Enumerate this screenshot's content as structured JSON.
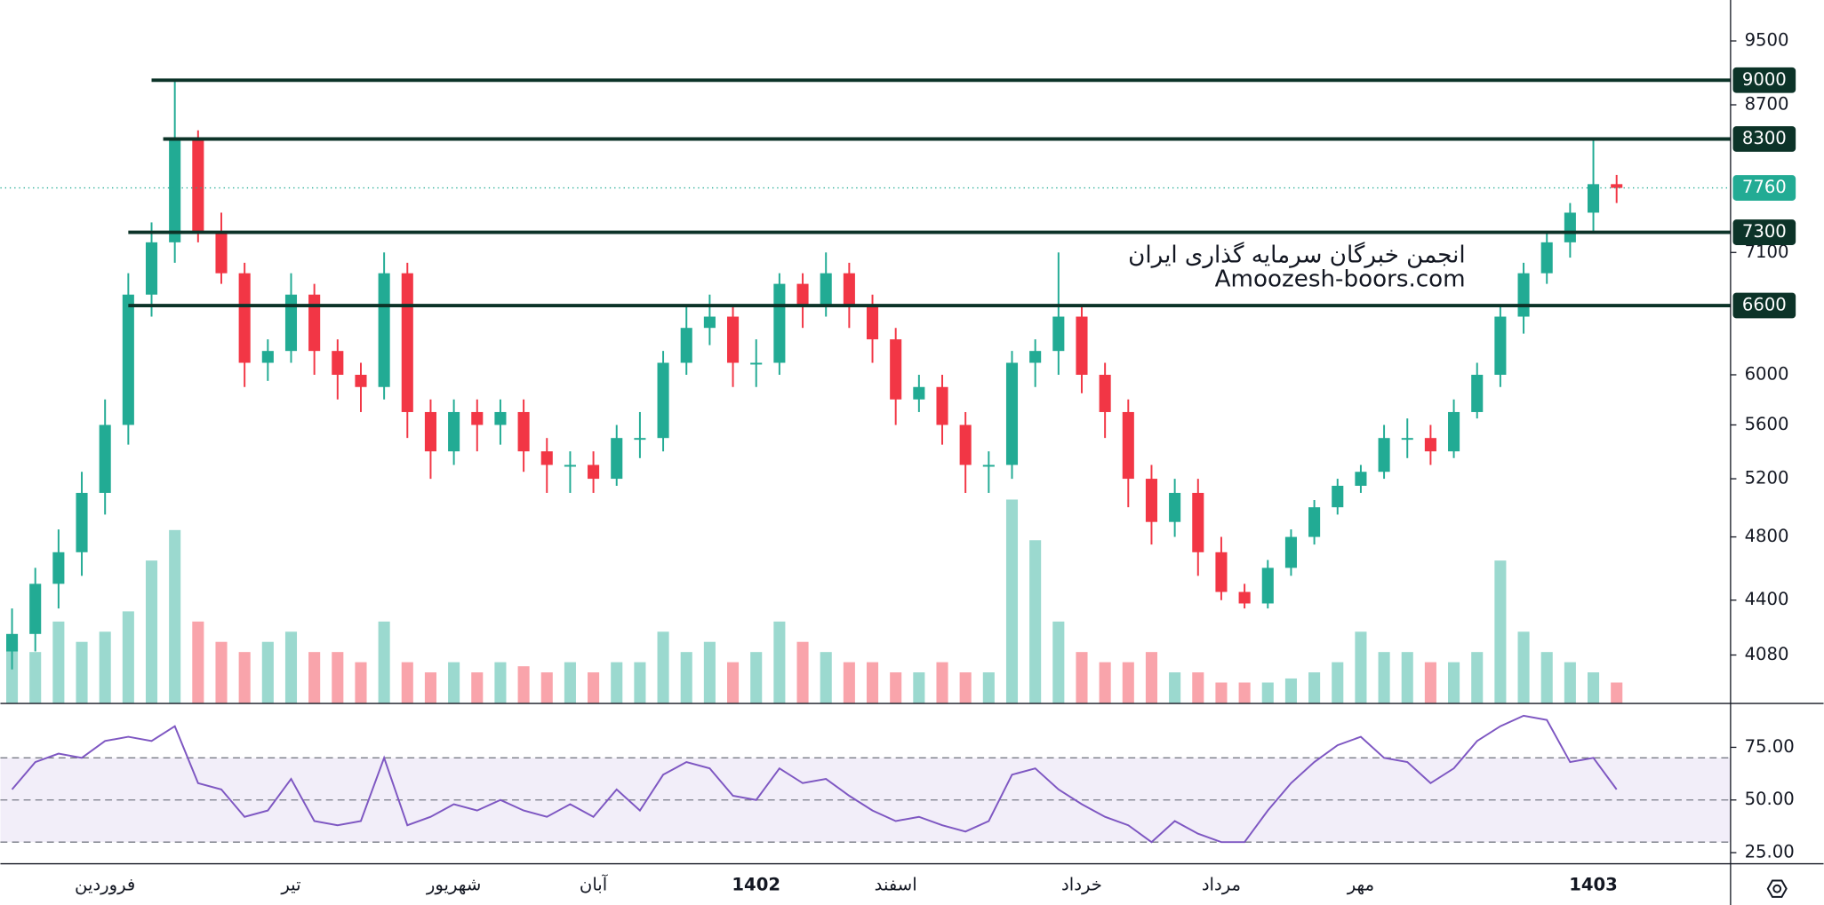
{
  "chart_data": {
    "type": "candlestick",
    "watermark": [
      "انجمن خبرگان سرمایه گذاری ایران",
      "Amoozesh-boors.com"
    ],
    "categories": [
      null,
      null,
      null,
      null,
      "فروردین",
      null,
      null,
      null,
      null,
      null,
      null,
      null,
      "تیر",
      null,
      null,
      null,
      null,
      null,
      null,
      "شهریور",
      null,
      null,
      null,
      null,
      null,
      "آبان",
      null,
      null,
      null,
      null,
      null,
      null,
      "1402",
      null,
      null,
      null,
      null,
      null,
      "اسفند",
      null,
      null,
      null,
      null,
      null,
      null,
      null,
      "خرداد",
      null,
      null,
      null,
      null,
      null,
      "مرداد",
      null,
      null,
      null,
      null,
      null,
      "مهر",
      null,
      null,
      null,
      null,
      null,
      null,
      null,
      null,
      null,
      "1403",
      null
    ],
    "open": [
      4100,
      4200,
      4500,
      4700,
      5100,
      5600,
      6700,
      7200,
      8300,
      7300,
      6900,
      6100,
      6200,
      6700,
      6200,
      6000,
      5900,
      6900,
      5700,
      5400,
      5700,
      5600,
      5700,
      5400,
      5300,
      5300,
      5200,
      5500,
      5500,
      6100,
      6400,
      6500,
      6100,
      6100,
      6800,
      6600,
      6900,
      6600,
      6300,
      5800,
      5900,
      5600,
      5300,
      5300,
      6100,
      6200,
      6500,
      6000,
      5700,
      5200,
      4900,
      5100,
      4700,
      4450,
      4380,
      4600,
      4800,
      5000,
      5150,
      5250,
      5500,
      5500,
      5400,
      5700,
      6000,
      6500,
      6900,
      7200,
      7500,
      7800
    ],
    "high": [
      4350,
      4600,
      4850,
      5250,
      5800,
      6900,
      7400,
      9000,
      8400,
      7500,
      7000,
      6300,
      6900,
      6800,
      6300,
      6100,
      7100,
      7000,
      5800,
      5800,
      5800,
      5800,
      5800,
      5500,
      5400,
      5400,
      5600,
      5700,
      6200,
      6600,
      6700,
      6600,
      6300,
      6900,
      6900,
      7100,
      7000,
      6700,
      6400,
      6000,
      6000,
      5700,
      5400,
      6200,
      6300,
      7100,
      6600,
      6100,
      5800,
      5300,
      5200,
      5200,
      4800,
      4500,
      4650,
      4850,
      5050,
      5200,
      5300,
      5600,
      5650,
      5600,
      5800,
      6100,
      6600,
      7000,
      7300,
      7600,
      8300,
      7900
    ],
    "low": [
      4000,
      4100,
      4350,
      4550,
      4950,
      5450,
      6500,
      7000,
      7200,
      6800,
      5900,
      5950,
      6100,
      6000,
      5800,
      5700,
      5800,
      5500,
      5200,
      5300,
      5400,
      5450,
      5250,
      5100,
      5100,
      5100,
      5150,
      5350,
      5400,
      6000,
      6250,
      5900,
      5900,
      6000,
      6400,
      6500,
      6400,
      6100,
      5600,
      5700,
      5450,
      5100,
      5100,
      5200,
      5900,
      6000,
      5850,
      5500,
      5000,
      4750,
      4800,
      4550,
      4400,
      4350,
      4350,
      4550,
      4750,
      4950,
      5100,
      5200,
      5350,
      5300,
      5350,
      5650,
      5900,
      6350,
      6800,
      7050,
      7300,
      7600
    ],
    "close": [
      4200,
      4500,
      4700,
      5100,
      5600,
      6700,
      7200,
      8300,
      7300,
      6900,
      6100,
      6200,
      6700,
      6200,
      6000,
      5900,
      6900,
      5700,
      5400,
      5700,
      5600,
      5700,
      5400,
      5300,
      5300,
      5200,
      5500,
      5500,
      6100,
      6400,
      6500,
      6100,
      6100,
      6800,
      6600,
      6900,
      6600,
      6300,
      5800,
      5900,
      5600,
      5300,
      5300,
      6100,
      6200,
      6500,
      6000,
      5700,
      5200,
      4900,
      5100,
      4700,
      4450,
      4380,
      4600,
      4800,
      5000,
      5150,
      5250,
      5500,
      5500,
      5400,
      5700,
      6000,
      6500,
      6900,
      7200,
      7500,
      7800,
      7760
    ],
    "volume": [
      30,
      25,
      40,
      30,
      35,
      45,
      70,
      85,
      40,
      30,
      25,
      30,
      35,
      25,
      25,
      20,
      40,
      20,
      15,
      20,
      15,
      20,
      18,
      15,
      20,
      15,
      20,
      20,
      35,
      25,
      30,
      20,
      25,
      40,
      30,
      25,
      20,
      20,
      15,
      15,
      20,
      15,
      15,
      100,
      80,
      40,
      25,
      20,
      20,
      25,
      15,
      15,
      10,
      10,
      10,
      12,
      15,
      20,
      35,
      25,
      25,
      20,
      20,
      25,
      70,
      35,
      25,
      20,
      15,
      10
    ],
    "rsi": [
      55,
      68,
      72,
      70,
      78,
      80,
      78,
      85,
      58,
      55,
      42,
      45,
      60,
      40,
      38,
      40,
      70,
      38,
      42,
      48,
      45,
      50,
      45,
      42,
      48,
      42,
      55,
      45,
      62,
      68,
      65,
      52,
      50,
      65,
      58,
      60,
      52,
      45,
      40,
      42,
      38,
      35,
      40,
      62,
      65,
      55,
      48,
      42,
      38,
      30,
      40,
      34,
      30,
      30,
      45,
      58,
      68,
      76,
      80,
      70,
      68,
      58,
      65,
      78,
      85,
      90,
      88,
      68,
      70,
      55
    ],
    "up_color": "#22ab94",
    "down_color": "#f23645",
    "rsi_color": "#7e57c2",
    "log": true,
    "ylim": [
      3820,
      10050
    ],
    "yticks": [
      4080,
      4400,
      4800,
      5200,
      5600,
      6000,
      7100,
      8700,
      9500
    ],
    "levels": [
      9000,
      8300,
      7300,
      6600
    ],
    "last_price": 7760,
    "rsi_ylim": [
      20,
      95
    ],
    "rsi_band": [
      30,
      70
    ],
    "rsi_mid": 50,
    "rsi_ticks": [
      {
        "value": 25,
        "label": "25.00"
      },
      {
        "value": 50,
        "label": "50.00"
      },
      {
        "value": 75,
        "label": "75.00"
      }
    ]
  }
}
